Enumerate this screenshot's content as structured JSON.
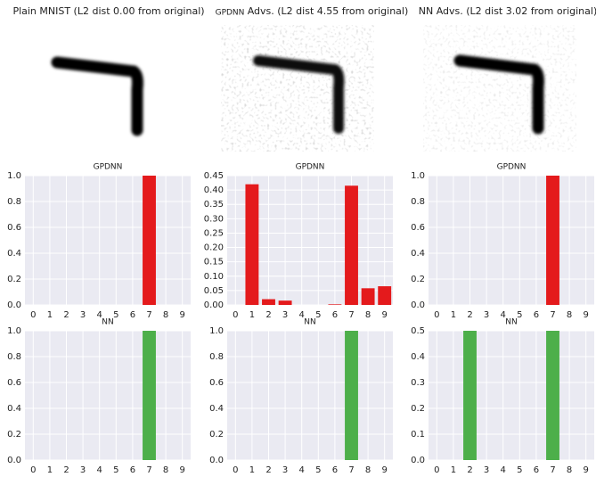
{
  "images": [
    {
      "title": "Plain MNIST (L2 dist 0.00 from original)"
    },
    {
      "label": "GPDNN",
      "title": "Advs. (L2 dist 4.55 from original)"
    },
    {
      "title": "NN Advs. (L2 dist 3.02 from original)"
    }
  ],
  "chart_data": [
    {
      "type": "bar",
      "title": "GPDNN",
      "categories": [
        "0",
        "1",
        "2",
        "3",
        "4",
        "5",
        "6",
        "7",
        "8",
        "9"
      ],
      "values": [
        0,
        0,
        0,
        0,
        0,
        0,
        0,
        1,
        0,
        0
      ],
      "color": "#e41a1c",
      "ylim": [
        0,
        1
      ],
      "yticks": [
        {
          "value": 0,
          "label": "0.0"
        },
        0.2,
        0.4,
        0.6,
        0.8,
        {
          "value": 1,
          "label": "1.0"
        }
      ],
      "grid": true
    },
    {
      "type": "bar",
      "title": "GPDNN",
      "categories": [
        "0",
        "1",
        "2",
        "3",
        "4",
        "5",
        "6",
        "7",
        "8",
        "9"
      ],
      "values": [
        0,
        0.42,
        0.02,
        0.015,
        0,
        0,
        0.002,
        0.415,
        0.058,
        0.065
      ],
      "color": "#e41a1c",
      "ylim": [
        0,
        0.45
      ],
      "yticks": [
        {
          "value": 0,
          "label": "0.00"
        },
        0.05,
        {
          "value": 0.1,
          "label": "0.10"
        },
        0.15,
        {
          "value": 0.2,
          "label": "0.20"
        },
        0.25,
        {
          "value": 0.3,
          "label": "0.30"
        },
        0.35,
        {
          "value": 0.4,
          "label": "0.40"
        },
        0.45
      ],
      "grid": true
    },
    {
      "type": "bar",
      "title": "GPDNN",
      "categories": [
        "0",
        "1",
        "2",
        "3",
        "4",
        "5",
        "6",
        "7",
        "8",
        "9"
      ],
      "values": [
        0,
        0,
        0,
        0,
        0,
        0,
        0,
        1,
        0,
        0
      ],
      "color": "#e41a1c",
      "ylim": [
        0,
        1
      ],
      "yticks": [
        {
          "value": 0,
          "label": "0.0"
        },
        0.2,
        0.4,
        0.6,
        0.8,
        {
          "value": 1,
          "label": "1.0"
        }
      ],
      "grid": true
    },
    {
      "type": "bar",
      "title": "NN",
      "categories": [
        "0",
        "1",
        "2",
        "3",
        "4",
        "5",
        "6",
        "7",
        "8",
        "9"
      ],
      "values": [
        0,
        0,
        0,
        0,
        0,
        0,
        0,
        1,
        0,
        0
      ],
      "color": "#4daf4a",
      "ylim": [
        0,
        1
      ],
      "yticks": [
        {
          "value": 0,
          "label": "0.0"
        },
        0.2,
        0.4,
        0.6,
        0.8,
        {
          "value": 1,
          "label": "1.0"
        }
      ],
      "grid": true
    },
    {
      "type": "bar",
      "title": "NN",
      "categories": [
        "0",
        "1",
        "2",
        "3",
        "4",
        "5",
        "6",
        "7",
        "8",
        "9"
      ],
      "values": [
        0,
        0,
        0,
        0,
        0,
        0,
        0,
        1,
        0,
        0
      ],
      "color": "#4daf4a",
      "ylim": [
        0,
        1
      ],
      "yticks": [
        {
          "value": 0,
          "label": "0.0"
        },
        0.2,
        0.4,
        0.6,
        0.8,
        {
          "value": 1,
          "label": "1.0"
        }
      ],
      "grid": true
    },
    {
      "type": "bar",
      "title": "NN",
      "categories": [
        "0",
        "1",
        "2",
        "3",
        "4",
        "5",
        "6",
        "7",
        "8",
        "9"
      ],
      "values": [
        0,
        0,
        0.5,
        0,
        0,
        0,
        0,
        0.5,
        0,
        0
      ],
      "color": "#4daf4a",
      "ylim": [
        0,
        0.5
      ],
      "yticks": [
        {
          "value": 0,
          "label": "0.0"
        },
        0.1,
        0.2,
        0.3,
        0.4,
        0.5
      ],
      "grid": true
    }
  ]
}
